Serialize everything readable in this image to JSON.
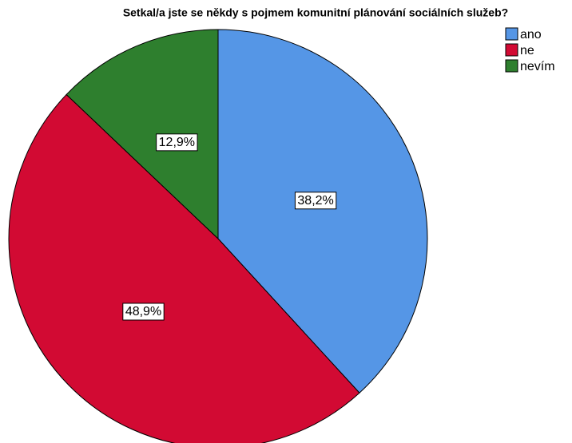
{
  "chart_data": {
    "type": "pie",
    "title": "Setkal/a jste se někdy s pojmem komunitní plánování sociálních služeb?",
    "categories": [
      "ano",
      "ne",
      "nevím"
    ],
    "values": [
      38.2,
      48.9,
      12.9
    ],
    "value_labels": [
      "38,2%",
      "48,9%",
      "12,9%"
    ],
    "colors": [
      "#5596e6",
      "#d20a33",
      "#2e7f2e"
    ]
  }
}
